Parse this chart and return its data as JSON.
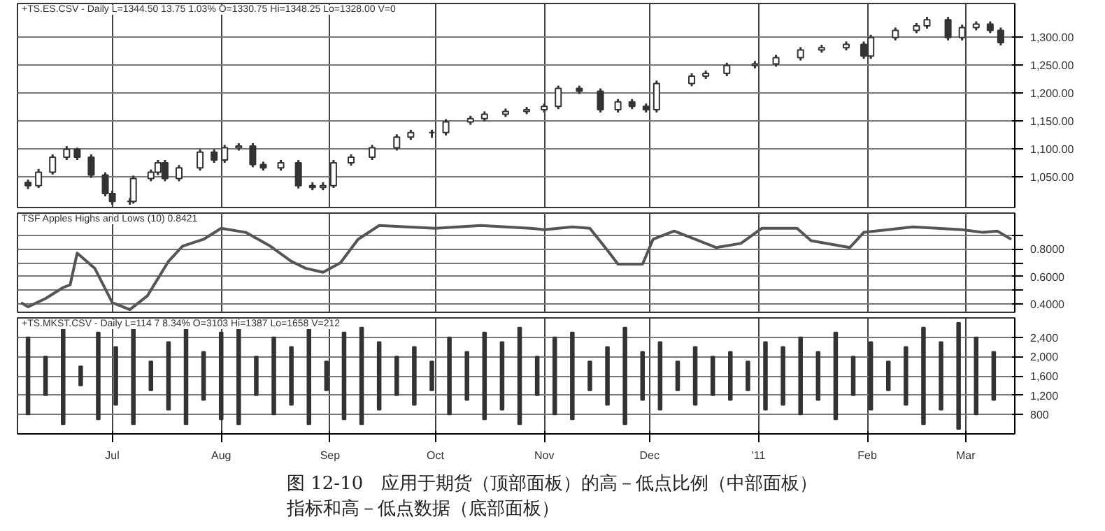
{
  "chart_data": [
    {
      "type": "candlestick",
      "title": "+TS.ES.CSV - Daily  L=1344.50 13.75 1.03% O=1330.75 Hi=1348.25 Lo=1328.00 V=0",
      "color": "#333333",
      "grid": true,
      "tick_labels": "y",
      "x": [
        "2010-06-07",
        "2010-06-10",
        "2010-06-14",
        "2010-06-18",
        "2010-06-21",
        "2010-06-25",
        "2010-06-29",
        "2010-07-01",
        "2010-07-06",
        "2010-07-07",
        "2010-07-12",
        "2010-07-14",
        "2010-07-16",
        "2010-07-20",
        "2010-07-26",
        "2010-07-30",
        "2010-08-02",
        "2010-08-06",
        "2010-08-10",
        "2010-08-13",
        "2010-08-18",
        "2010-08-23",
        "2010-08-27",
        "2010-08-30",
        "2010-09-02",
        "2010-09-07",
        "2010-09-13",
        "2010-09-20",
        "2010-09-24",
        "2010-09-30",
        "2010-10-04",
        "2010-10-11",
        "2010-10-15",
        "2010-10-21",
        "2010-10-27",
        "2010-11-01",
        "2010-11-05",
        "2010-11-11",
        "2010-11-17",
        "2010-11-22",
        "2010-11-26",
        "2010-11-30",
        "2010-12-03",
        "2010-12-13",
        "2010-12-17",
        "2010-12-23",
        "2010-12-31",
        "2011-01-06",
        "2011-01-13",
        "2011-01-19",
        "2011-01-26",
        "2011-01-31",
        "2011-02-02",
        "2011-02-09",
        "2011-02-15",
        "2011-02-18",
        "2011-02-24",
        "2011-02-28",
        "2011-03-04",
        "2011-03-08",
        "2011-03-11"
      ],
      "ohlc": [
        [
          1040,
          1045,
          1028,
          1034
        ],
        [
          1034,
          1064,
          1030,
          1058
        ],
        [
          1058,
          1090,
          1054,
          1085
        ],
        [
          1085,
          1105,
          1080,
          1099
        ],
        [
          1099,
          1102,
          1080,
          1085
        ],
        [
          1085,
          1090,
          1048,
          1053
        ],
        [
          1053,
          1058,
          1015,
          1020
        ],
        [
          1020,
          1025,
          1000,
          1006
        ],
        [
          1006,
          1012,
          1000,
          1006
        ],
        [
          1006,
          1052,
          1002,
          1047
        ],
        [
          1047,
          1063,
          1042,
          1058
        ],
        [
          1058,
          1080,
          1053,
          1075
        ],
        [
          1075,
          1080,
          1042,
          1047
        ],
        [
          1047,
          1071,
          1042,
          1066
        ],
        [
          1066,
          1099,
          1061,
          1094
        ],
        [
          1094,
          1099,
          1075,
          1080
        ],
        [
          1080,
          1107,
          1075,
          1102
        ],
        [
          1102,
          1110,
          1097,
          1105
        ],
        [
          1105,
          1110,
          1067,
          1072
        ],
        [
          1072,
          1077,
          1061,
          1066
        ],
        [
          1066,
          1080,
          1061,
          1075
        ],
        [
          1075,
          1080,
          1029,
          1034
        ],
        [
          1034,
          1040,
          1026,
          1031
        ],
        [
          1031,
          1040,
          1026,
          1034
        ],
        [
          1034,
          1080,
          1030,
          1075
        ],
        [
          1075,
          1090,
          1070,
          1085
        ],
        [
          1085,
          1107,
          1080,
          1102
        ],
        [
          1102,
          1126,
          1097,
          1121
        ],
        [
          1121,
          1134,
          1116,
          1129
        ],
        [
          1129,
          1134,
          1120,
          1129
        ],
        [
          1129,
          1153,
          1124,
          1148
        ],
        [
          1148,
          1159,
          1143,
          1154
        ],
        [
          1154,
          1167,
          1149,
          1162
        ],
        [
          1162,
          1172,
          1157,
          1167
        ],
        [
          1167,
          1175,
          1162,
          1170
        ],
        [
          1170,
          1181,
          1165,
          1176
        ],
        [
          1176,
          1213,
          1171,
          1208
        ],
        [
          1208,
          1213,
          1198,
          1203
        ],
        [
          1203,
          1208,
          1165,
          1170
        ],
        [
          1170,
          1189,
          1165,
          1184
        ],
        [
          1184,
          1189,
          1171,
          1176
        ],
        [
          1176,
          1181,
          1165,
          1170
        ],
        [
          1170,
          1222,
          1165,
          1217
        ],
        [
          1217,
          1235,
          1212,
          1230
        ],
        [
          1230,
          1240,
          1225,
          1235
        ],
        [
          1235,
          1254,
          1230,
          1249
        ],
        [
          1249,
          1257,
          1244,
          1252
        ],
        [
          1252,
          1268,
          1247,
          1263
        ],
        [
          1263,
          1282,
          1258,
          1277
        ],
        [
          1277,
          1286,
          1272,
          1281
        ],
        [
          1281,
          1292,
          1276,
          1287
        ],
        [
          1287,
          1292,
          1261,
          1266
        ],
        [
          1266,
          1304,
          1261,
          1299
        ],
        [
          1299,
          1317,
          1294,
          1312
        ],
        [
          1312,
          1325,
          1307,
          1320
        ],
        [
          1320,
          1336,
          1315,
          1331
        ],
        [
          1331,
          1336,
          1294,
          1299
        ],
        [
          1299,
          1322,
          1294,
          1317
        ],
        [
          1317,
          1328,
          1312,
          1323
        ],
        [
          1323,
          1328,
          1307,
          1312
        ],
        [
          1312,
          1317,
          1285,
          1290
        ]
      ],
      "xlim": [
        "2010-06-04",
        "2011-03-15"
      ],
      "xticks": [
        {
          "value": "2010-07-01",
          "label": null
        },
        {
          "value": "2010-08-01",
          "label": null
        },
        {
          "value": "2010-09-01",
          "label": null
        },
        {
          "value": "2010-10-01",
          "label": null
        },
        {
          "value": "2010-11-01",
          "label": null
        },
        {
          "value": "2010-12-01",
          "label": null
        },
        {
          "value": "2011-01-01",
          "label": null
        },
        {
          "value": "2011-02-01",
          "label": null
        },
        {
          "value": "2011-03-01",
          "label": null
        }
      ],
      "ylim": [
        995,
        1360
      ],
      "yticks": [
        {
          "value": 1050,
          "label": "1,050.00"
        },
        {
          "value": 1100,
          "label": "1,100.00"
        },
        {
          "value": 1150,
          "label": "1,150.00"
        },
        {
          "value": 1200,
          "label": "1,200.00"
        },
        {
          "value": 1250,
          "label": "1,250.00"
        },
        {
          "value": 1300,
          "label": "1,300.00"
        }
      ]
    },
    {
      "type": "line",
      "title": "TSF Apples Highs and Lows (10)  0.8421",
      "color": "#555555",
      "grid": true,
      "tick_labels": "y",
      "x": [
        "2010-06-05",
        "2010-06-07",
        "2010-06-12",
        "2010-06-17",
        "2010-06-19",
        "2010-06-21",
        "2010-06-26",
        "2010-07-01",
        "2010-07-06",
        "2010-07-11",
        "2010-07-17",
        "2010-07-21",
        "2010-07-27",
        "2010-08-01",
        "2010-08-08",
        "2010-08-15",
        "2010-08-21",
        "2010-08-25",
        "2010-08-30",
        "2010-09-04",
        "2010-09-09",
        "2010-09-15",
        "2010-10-01",
        "2010-10-14",
        "2010-10-28",
        "2010-11-01",
        "2010-11-09",
        "2010-11-14",
        "2010-11-19",
        "2010-11-22",
        "2010-11-29",
        "2010-12-02",
        "2010-12-08",
        "2010-12-20",
        "2010-12-27",
        "2011-01-02",
        "2011-01-12",
        "2011-01-16",
        "2011-01-27",
        "2011-01-31",
        "2011-02-14",
        "2011-02-28",
        "2011-03-06",
        "2011-03-10",
        "2011-03-14"
      ],
      "values": [
        0.41,
        0.38,
        0.44,
        0.52,
        0.54,
        0.77,
        0.66,
        0.41,
        0.36,
        0.46,
        0.71,
        0.82,
        0.87,
        0.95,
        0.92,
        0.82,
        0.71,
        0.66,
        0.63,
        0.7,
        0.87,
        0.97,
        0.95,
        0.97,
        0.95,
        0.94,
        0.96,
        0.95,
        0.79,
        0.69,
        0.69,
        0.87,
        0.93,
        0.81,
        0.84,
        0.95,
        0.95,
        0.86,
        0.81,
        0.92,
        0.96,
        0.94,
        0.92,
        0.93,
        0.87
      ],
      "xlim": [
        "2010-06-04",
        "2011-03-15"
      ],
      "xticks": [
        {
          "value": "2010-07-01",
          "label": null
        },
        {
          "value": "2010-08-01",
          "label": null
        },
        {
          "value": "2010-09-01",
          "label": null
        },
        {
          "value": "2010-10-01",
          "label": null
        },
        {
          "value": "2010-11-01",
          "label": null
        },
        {
          "value": "2010-12-01",
          "label": null
        },
        {
          "value": "2011-01-01",
          "label": null
        },
        {
          "value": "2011-02-01",
          "label": null
        },
        {
          "value": "2011-03-01",
          "label": null
        }
      ],
      "ylim": [
        0.34,
        1.06
      ],
      "yticks": [
        {
          "value": 0.4,
          "label": "0.4000"
        },
        {
          "value": 0.5,
          "label": null
        },
        {
          "value": 0.6,
          "label": "0.6000"
        },
        {
          "value": 0.7,
          "label": null
        },
        {
          "value": 0.8,
          "label": "0.8000"
        },
        {
          "value": 0.9,
          "label": null
        }
      ]
    },
    {
      "type": "bar",
      "title": "+TS.MKST.CSV - Daily  L=114 7 8.34% O=3103 Hi=1387 Lo=1658 V=212",
      "color": "#333333",
      "grid": true,
      "x": [
        "2010-06-07",
        "2010-06-12",
        "2010-06-17",
        "2010-06-22",
        "2010-06-27",
        "2010-07-02",
        "2010-07-07",
        "2010-07-12",
        "2010-07-17",
        "2010-07-22",
        "2010-07-27",
        "2010-08-01",
        "2010-08-06",
        "2010-08-11",
        "2010-08-16",
        "2010-08-21",
        "2010-08-26",
        "2010-08-31",
        "2010-09-05",
        "2010-09-10",
        "2010-09-15",
        "2010-09-20",
        "2010-09-25",
        "2010-09-30",
        "2010-10-05",
        "2010-10-10",
        "2010-10-15",
        "2010-10-20",
        "2010-10-25",
        "2010-10-30",
        "2010-11-04",
        "2010-11-09",
        "2010-11-14",
        "2010-11-19",
        "2010-11-24",
        "2010-11-29",
        "2010-12-04",
        "2010-12-09",
        "2010-12-14",
        "2010-12-19",
        "2010-12-24",
        "2010-12-29",
        "2011-01-03",
        "2011-01-08",
        "2011-01-13",
        "2011-01-18",
        "2011-01-23",
        "2011-01-28",
        "2011-02-02",
        "2011-02-07",
        "2011-02-12",
        "2011-02-17",
        "2011-02-22",
        "2011-02-27",
        "2011-03-04",
        "2011-03-09"
      ],
      "base": [
        800,
        1200,
        600,
        1400,
        700,
        1000,
        600,
        1300,
        900,
        600,
        1100,
        700,
        600,
        1200,
        800,
        1000,
        600,
        1300,
        700,
        600,
        900,
        1200,
        1000,
        1300,
        800,
        1100,
        700,
        900,
        600,
        1200,
        800,
        700,
        1300,
        1000,
        600,
        1100,
        900,
        1300,
        1000,
        1200,
        1100,
        1300,
        900,
        1000,
        800,
        1100,
        700,
        1200,
        900,
        1300,
        1000,
        600,
        900,
        500,
        800,
        1100
      ],
      "values": [
        1600,
        800,
        2000,
        400,
        1800,
        1200,
        2000,
        600,
        1400,
        2000,
        1000,
        1800,
        2000,
        800,
        1600,
        1200,
        2000,
        600,
        1800,
        2000,
        1400,
        800,
        1200,
        600,
        1600,
        1000,
        1800,
        1400,
        2000,
        800,
        1600,
        1800,
        600,
        1200,
        2000,
        1000,
        1400,
        600,
        1200,
        800,
        1000,
        600,
        1400,
        1200,
        1600,
        1000,
        1800,
        800,
        1400,
        600,
        1200,
        2000,
        1400,
        2200,
        1600,
        1000
      ],
      "xlim": [
        "2010-06-04",
        "2011-03-15"
      ],
      "xticks": [
        {
          "value": "2010-07-01",
          "label": "Jul"
        },
        {
          "value": "2010-08-01",
          "label": "Aug"
        },
        {
          "value": "2010-09-01",
          "label": "Sep"
        },
        {
          "value": "2010-10-01",
          "label": "Oct"
        },
        {
          "value": "2010-11-01",
          "label": "Nov"
        },
        {
          "value": "2010-12-01",
          "label": "Dec"
        },
        {
          "value": "2011-01-01",
          "label": "'11"
        },
        {
          "value": "2011-02-01",
          "label": "Feb"
        },
        {
          "value": "2011-03-01",
          "label": "Mar"
        }
      ],
      "ylim": [
        400,
        2800
      ],
      "yticks": [
        {
          "value": 800,
          "label": "800"
        },
        {
          "value": 1200,
          "label": "1,200"
        },
        {
          "value": 1600,
          "label": "1,600"
        },
        {
          "value": 2000,
          "label": "2,000"
        },
        {
          "value": 2400,
          "label": "2,400"
        }
      ],
      "annotations": [
        "图 12-10　应用于期货（顶部面板）的高－低点比例（中部面板）",
        "指标和高－低点数据（底部面板）"
      ]
    }
  ]
}
